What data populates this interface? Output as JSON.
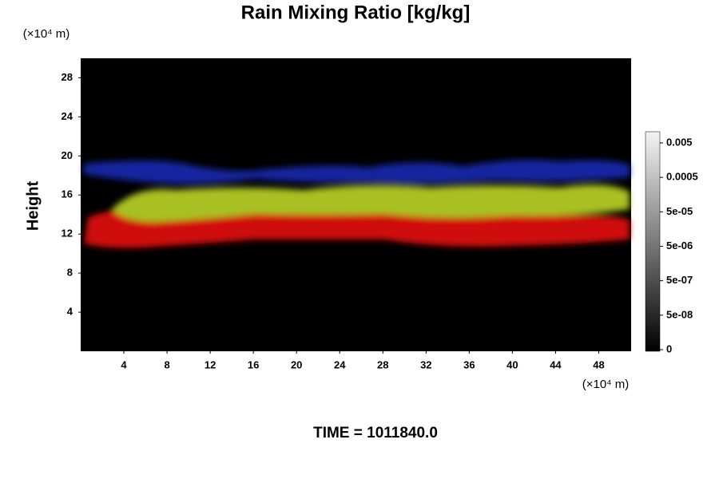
{
  "chart_data": {
    "type": "heatmap",
    "title": "Rain Mixing Ratio [kg/kg]",
    "y_label": "Height",
    "x_unit": "(×10⁴ m)",
    "y_unit": "(×10⁴ m)",
    "xlim": [
      0,
      51
    ],
    "ylim": [
      0,
      30
    ],
    "xticks": [
      4,
      8,
      12,
      16,
      20,
      24,
      28,
      32,
      36,
      40,
      44,
      48
    ],
    "yticks": [
      4,
      8,
      12,
      16,
      20,
      24,
      28
    ],
    "colorbar_ticks": [
      0,
      {
        "value": 5e-08,
        "label": "5e-08"
      },
      {
        "value": 5e-07,
        "label": "5e-07"
      },
      {
        "value": 5e-06,
        "label": "5e-06"
      },
      {
        "value": 5e-05,
        "label": "5e-05"
      },
      0.0005,
      0.005
    ],
    "time_label": "TIME = 1011840.0"
  }
}
